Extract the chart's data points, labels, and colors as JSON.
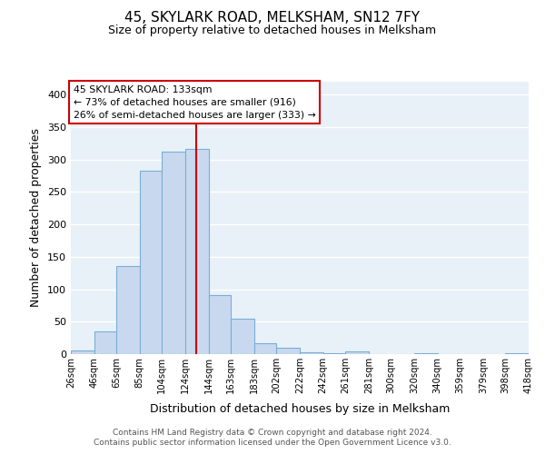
{
  "title": "45, SKYLARK ROAD, MELKSHAM, SN12 7FY",
  "subtitle": "Size of property relative to detached houses in Melksham",
  "xlabel": "Distribution of detached houses by size in Melksham",
  "ylabel": "Number of detached properties",
  "bar_color": "#c8d9ef",
  "bar_edge_color": "#7aafd4",
  "background_color": "#e8f0f8",
  "grid_color": "#ffffff",
  "ref_line_color": "#cc0000",
  "ref_line_x": 133,
  "bin_edges": [
    26,
    46,
    65,
    85,
    104,
    124,
    144,
    163,
    183,
    202,
    222,
    242,
    261,
    281,
    300,
    320,
    340,
    359,
    379,
    398,
    418
  ],
  "bin_heights": [
    5,
    35,
    136,
    283,
    312,
    316,
    91,
    55,
    17,
    10,
    3,
    1,
    4,
    0,
    0,
    1,
    0,
    0,
    0,
    1
  ],
  "tick_labels": [
    "26sqm",
    "46sqm",
    "65sqm",
    "85sqm",
    "104sqm",
    "124sqm",
    "144sqm",
    "163sqm",
    "183sqm",
    "202sqm",
    "222sqm",
    "242sqm",
    "261sqm",
    "281sqm",
    "300sqm",
    "320sqm",
    "340sqm",
    "359sqm",
    "379sqm",
    "398sqm",
    "418sqm"
  ],
  "ylim": [
    0,
    420
  ],
  "yticks": [
    0,
    50,
    100,
    150,
    200,
    250,
    300,
    350,
    400
  ],
  "annotation_title": "45 SKYLARK ROAD: 133sqm",
  "annotation_line1": "← 73% of detached houses are smaller (916)",
  "annotation_line2": "26% of semi-detached houses are larger (333) →",
  "footer1": "Contains HM Land Registry data © Crown copyright and database right 2024.",
  "footer2": "Contains public sector information licensed under the Open Government Licence v3.0."
}
